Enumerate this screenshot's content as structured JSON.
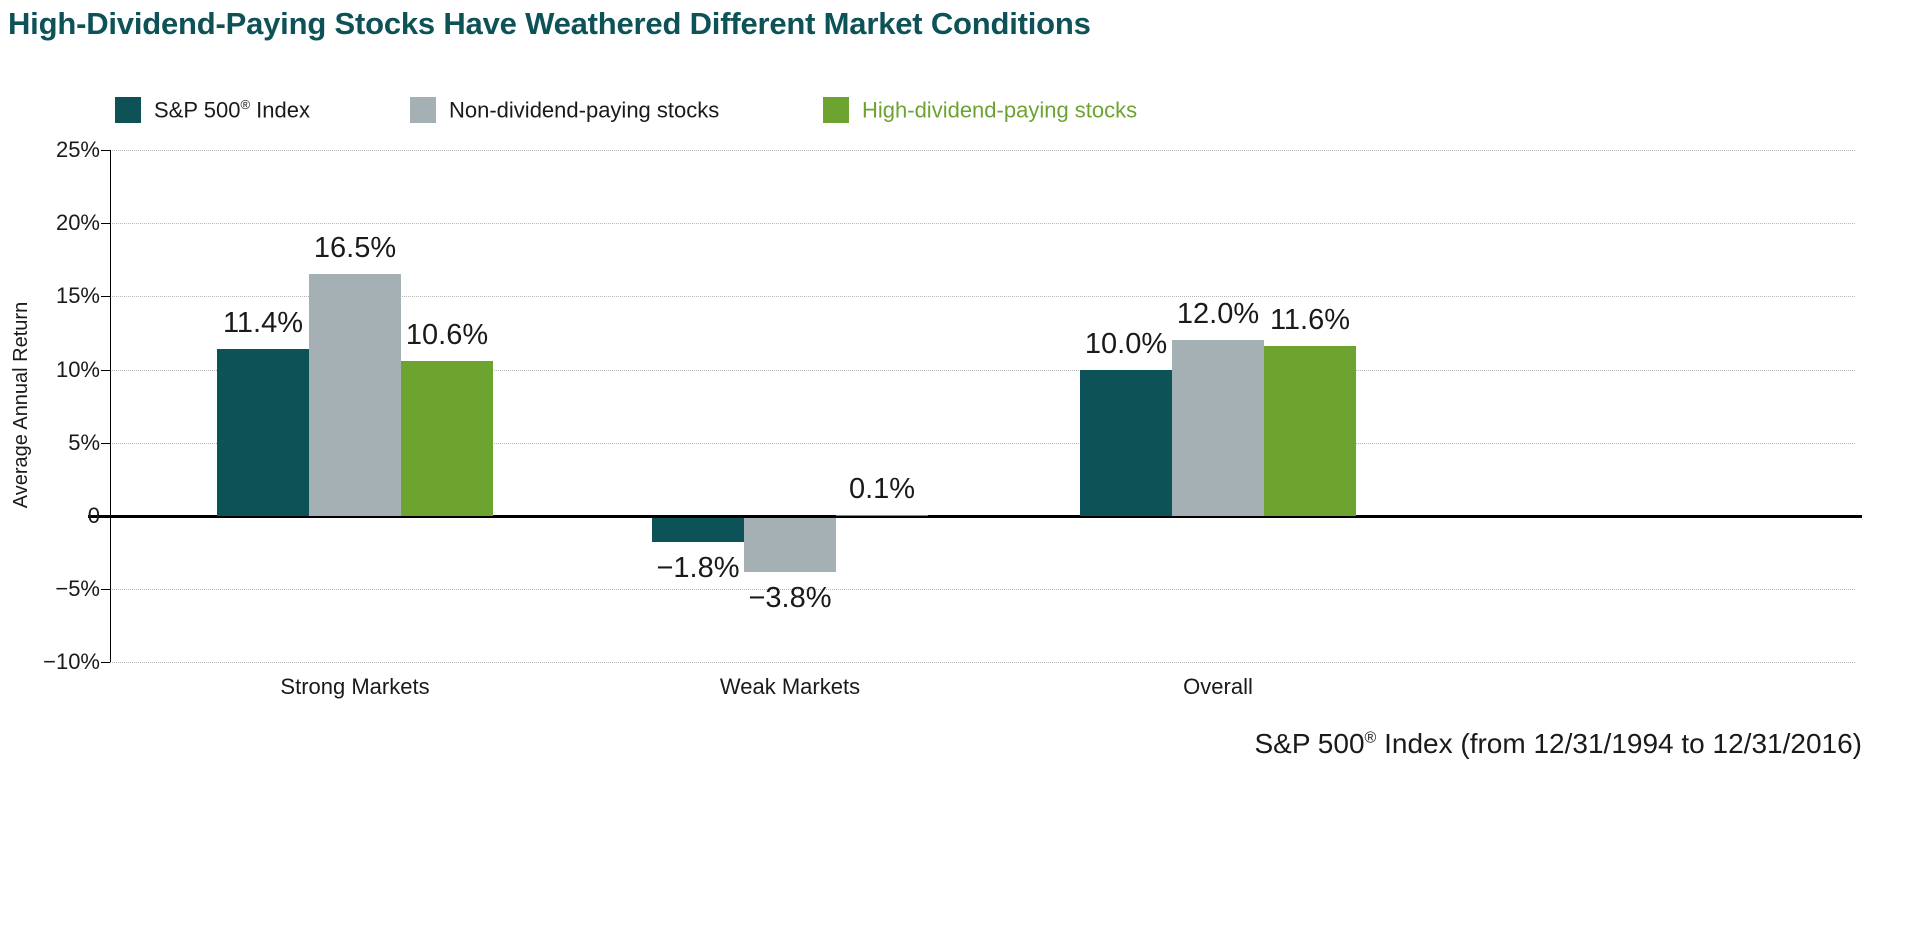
{
  "title": "High-Dividend-Paying Stocks Have Weathered Different Market Conditions",
  "colors": {
    "title": "#0d5257",
    "teal": "#0d5257",
    "gray": "#a5b0b5",
    "green": "#6da32f",
    "axis": "#000000",
    "grid": "#b5b5b5",
    "text": "#1a1a1a"
  },
  "legend": {
    "items": [
      {
        "label_pre": "S&P 500",
        "label_sup": "®",
        "label_post": " Index",
        "color": "#0d5257",
        "text_color": "#1a1a1a"
      },
      {
        "label_pre": "Non-dividend-paying stocks",
        "label_sup": "",
        "label_post": "",
        "color": "#a5b0b5",
        "text_color": "#1a1a1a"
      },
      {
        "label_pre": "High-dividend-paying stocks",
        "label_sup": "",
        "label_post": "",
        "color": "#6da32f",
        "text_color": "#6da32f"
      }
    ]
  },
  "footnote": {
    "pre": "S&P 500",
    "sup": "®",
    "post": " Index (from 12/31/1994 to 12/31/2016)"
  },
  "chart_data": {
    "type": "bar",
    "categories": [
      "Strong Markets",
      "Weak Markets",
      "Overall"
    ],
    "series": [
      {
        "name": "S&P 500® Index",
        "color": "#0d5257",
        "values": [
          11.4,
          -1.8,
          10.0
        ],
        "labels": [
          "11.4%",
          "−1.8%",
          "10.0%"
        ]
      },
      {
        "name": "Non-dividend-paying stocks",
        "color": "#a5b0b5",
        "values": [
          16.5,
          -3.8,
          12.0
        ],
        "labels": [
          "16.5%",
          "−3.8%",
          "12.0%"
        ]
      },
      {
        "name": "High-dividend-paying stocks",
        "color": "#6da32f",
        "values": [
          10.6,
          0.1,
          11.6
        ],
        "labels": [
          "10.6%",
          "0.1%",
          "11.6%"
        ]
      }
    ],
    "ylabel": "Average Annual Return",
    "ylim": [
      -10,
      25
    ],
    "yticks": [
      -10,
      -5,
      0,
      5,
      10,
      15,
      20,
      25
    ],
    "ytick_labels": [
      "−10%",
      "−5%",
      "0",
      "5%",
      "10%",
      "15%",
      "20%",
      "25%"
    ],
    "grid": true,
    "legend_position": "top"
  }
}
